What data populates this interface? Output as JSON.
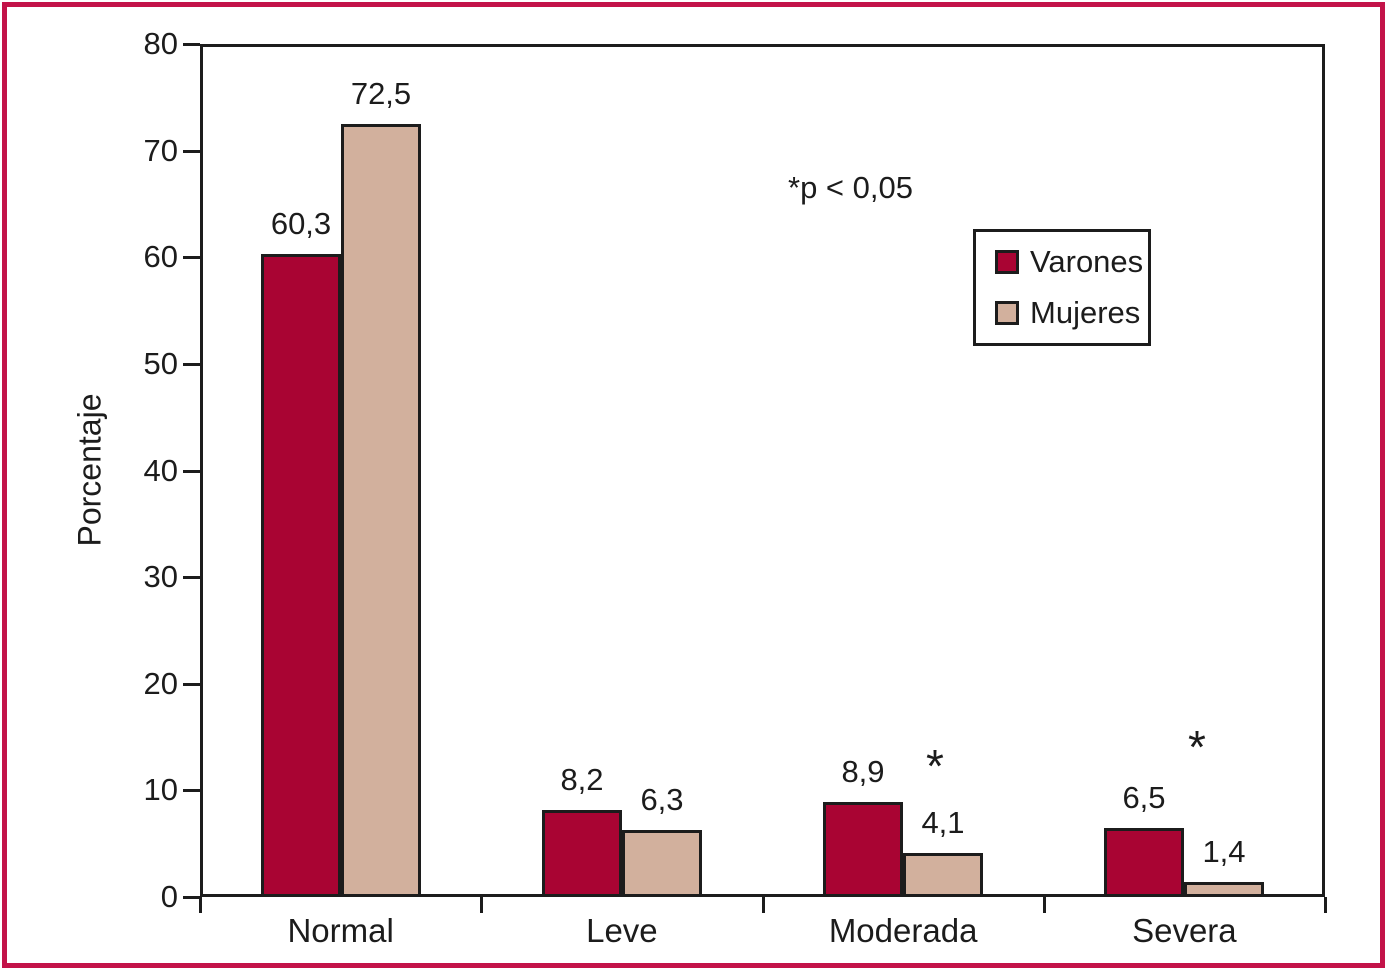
{
  "chart_data": {
    "type": "bar",
    "title": "",
    "ylabel": "Porcentaje",
    "xlabel": "",
    "categories": [
      "Normal",
      "Leve",
      "Moderada",
      "Severa"
    ],
    "series": [
      {
        "name": "Varones",
        "color": "#A90433",
        "values": [
          60.3,
          8.2,
          8.9,
          6.5
        ],
        "labels": [
          "60,3",
          "8,2",
          "8,9",
          "6,5"
        ]
      },
      {
        "name": "Mujeres",
        "color": "#D2B09D",
        "values": [
          72.5,
          6.3,
          4.1,
          1.4
        ],
        "labels": [
          "72,5",
          "6,3",
          "4,1",
          "1,4"
        ]
      }
    ],
    "ylim": [
      0,
      80
    ],
    "yticks": [
      0,
      10,
      20,
      30,
      40,
      50,
      60,
      70,
      80
    ],
    "grid": false,
    "legend_position": "upper right",
    "annotations": [
      {
        "text": "*p < 0,05"
      }
    ],
    "significance_markers": [
      {
        "category": "Moderada",
        "series": "Mujeres",
        "text": "*"
      },
      {
        "category": "Severa",
        "series": "Mujeres",
        "text": "*"
      }
    ]
  },
  "colors": {
    "varones": "#A90433",
    "mujeres": "#D2B09D",
    "axis": "#1c1c1c",
    "frame_border": "#C31349",
    "background": "#ffffff"
  }
}
